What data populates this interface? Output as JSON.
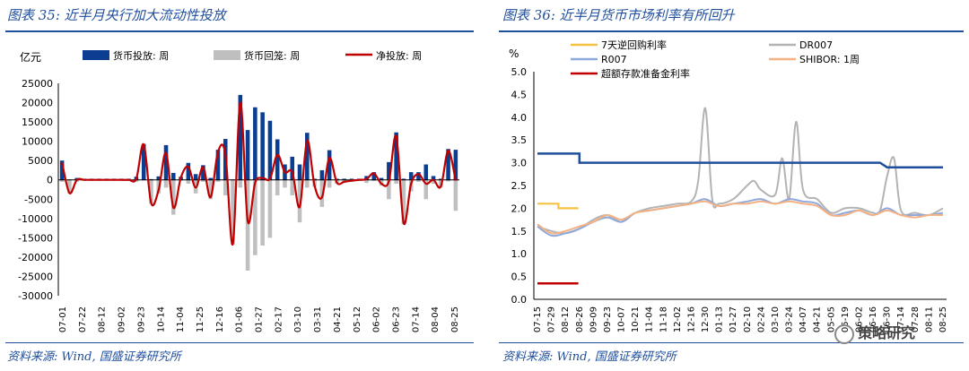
{
  "left": {
    "title": "图表 35:  近半月央行加大流动性投放",
    "source": "资料来源:  Wind,  国盛证券研究所"
  },
  "right": {
    "title": "图表 36:  近半月货币市场利率有所回升",
    "source": "资料来源:  Wind,  国盛证券研究所"
  },
  "watermark": "策略研究",
  "colors": {
    "title": "#1f4e9c",
    "injection": "#0b3d91",
    "withdrawal": "#bfbfbf",
    "net": "#c00000",
    "r7d": "#f5c242",
    "dr007": "#b3b3b3",
    "r007": "#8ea9db",
    "shibor": "#f4b183",
    "excess": "#c00000",
    "rrr": "#1f4e9c"
  },
  "chart_data": [
    {
      "type": "bar",
      "ylabel": "亿元",
      "ylim": [
        -30000,
        25000
      ],
      "yticks": [
        25000,
        20000,
        15000,
        10000,
        5000,
        0,
        -5000,
        -10000,
        -15000,
        -20000,
        -25000,
        -30000
      ],
      "xtick_labels": [
        "07-01",
        "07-22",
        "08-12",
        "09-02",
        "09-23",
        "10-14",
        "11-04",
        "11-25",
        "12-16",
        "01-06",
        "01-27",
        "02-17",
        "03-10",
        "03-31",
        "04-21",
        "05-12",
        "06-02",
        "06-23",
        "07-14",
        "08-04",
        "08-25"
      ],
      "legend": [
        "货币投放: 周",
        "货币回笼: 周",
        "净投放: 周"
      ],
      "series": [
        {
          "name": "货币投放: 周",
          "values": [
            5000,
            100,
            500,
            300,
            300,
            300,
            300,
            300,
            300,
            300,
            800,
            9300,
            200,
            900,
            9000,
            1800,
            800,
            4400,
            1500,
            3800,
            500,
            7800,
            10600,
            100,
            22000,
            12900,
            18800,
            17500,
            15300,
            10500,
            4000,
            6000,
            4000,
            12200,
            300,
            2500,
            7700,
            300,
            300,
            300,
            300,
            1000,
            2000,
            500,
            4600,
            12300,
            300,
            2000,
            2000,
            4000,
            1000,
            300,
            8000,
            7800
          ]
        },
        {
          "name": "货币回笼: 周",
          "values": [
            -500,
            -3500,
            -500,
            -300,
            -300,
            -300,
            -300,
            -300,
            -300,
            -300,
            -500,
            -100,
            -6200,
            -3500,
            -2000,
            -9000,
            -200,
            -1000,
            -3500,
            -500,
            -5000,
            -500,
            -4000,
            -16700,
            -2000,
            -23500,
            -19500,
            -17000,
            -15000,
            -4000,
            -2000,
            -4000,
            -11000,
            -2000,
            -1800,
            -7000,
            -2000,
            -1000,
            -800,
            -500,
            -300,
            -800,
            -300,
            -1500,
            -5000,
            -1000,
            -11500,
            -3000,
            -500,
            -5000,
            -1000,
            -2000,
            -400,
            -8000
          ]
        },
        {
          "name": "净投放: 周",
          "values": [
            4500,
            -3400,
            0,
            0,
            0,
            0,
            0,
            0,
            0,
            0,
            300,
            9200,
            -6000,
            -2600,
            7000,
            -7200,
            600,
            3400,
            -2000,
            3300,
            -4500,
            7300,
            6600,
            -16600,
            20000,
            -10600,
            -700,
            500,
            300,
            6500,
            2000,
            2000,
            -7000,
            10200,
            -1500,
            -4500,
            5700,
            -700,
            -500,
            -200,
            0,
            200,
            1700,
            -1000,
            -400,
            11300,
            -11200,
            -1000,
            1500,
            -1000,
            0,
            -1700,
            7600,
            -200
          ]
        }
      ]
    },
    {
      "type": "line",
      "ylabel": "%",
      "ylim": [
        0,
        5.0
      ],
      "yticks": [
        5.0,
        4.5,
        4.0,
        3.5,
        3.0,
        2.5,
        2.0,
        1.5,
        1.0,
        0.5,
        0.0
      ],
      "xtick_labels": [
        "07-15",
        "07-29",
        "08-12",
        "08-26",
        "09-09",
        "09-23",
        "10-07",
        "10-21",
        "11-04",
        "11-18",
        "12-02",
        "12-16",
        "12-30",
        "01-13",
        "01-27",
        "02-10",
        "02-24",
        "03-10",
        "03-24",
        "04-07",
        "04-21",
        "05-05",
        "05-19",
        "06-02",
        "06-16",
        "06-30",
        "07-14",
        "07-28",
        "08-11",
        "08-25"
      ],
      "legend": [
        "7天逆回购利率",
        "DR007",
        "R007",
        "SHIBOR: 1周",
        "超额存款准备金利率"
      ],
      "series": [
        {
          "name": "7天逆回购利率",
          "x": [
            "07-15",
            "08-05",
            "08-05",
            "08-25"
          ],
          "values": [
            2.1,
            2.1,
            2.0,
            2.0
          ]
        },
        {
          "name": "DR007",
          "x": [
            "07-15",
            "07-29",
            "08-12",
            "08-26",
            "09-09",
            "09-23",
            "10-07",
            "10-21",
            "11-04",
            "11-18",
            "12-02",
            "12-16",
            "12-23",
            "12-30",
            "01-06",
            "01-13",
            "01-27",
            "02-10",
            "02-17",
            "02-24",
            "03-10",
            "03-17",
            "03-24",
            "03-31",
            "04-07",
            "04-21",
            "05-05",
            "05-19",
            "06-02",
            "06-16",
            "06-23",
            "06-30",
            "07-07",
            "07-14",
            "07-28",
            "08-11",
            "08-25"
          ],
          "values": [
            1.6,
            1.5,
            1.45,
            1.55,
            1.75,
            1.85,
            1.7,
            1.9,
            2.0,
            2.05,
            2.1,
            2.15,
            2.6,
            4.2,
            2.2,
            2.1,
            2.2,
            2.5,
            2.6,
            2.4,
            2.3,
            3.1,
            2.2,
            3.9,
            2.4,
            2.2,
            1.9,
            2.0,
            2.0,
            1.9,
            1.95,
            2.7,
            3.1,
            1.95,
            1.9,
            1.85,
            2.0
          ]
        },
        {
          "name": "R007",
          "x": [
            "07-15",
            "07-29",
            "08-12",
            "08-26",
            "09-09",
            "09-23",
            "10-07",
            "10-21",
            "11-04",
            "11-18",
            "12-02",
            "12-16",
            "12-30",
            "01-13",
            "01-27",
            "02-10",
            "02-24",
            "03-10",
            "03-24",
            "04-07",
            "04-21",
            "05-05",
            "05-19",
            "06-02",
            "06-16",
            "06-30",
            "07-14",
            "07-28",
            "08-11",
            "08-25"
          ],
          "values": [
            1.6,
            1.4,
            1.45,
            1.55,
            1.7,
            1.8,
            1.7,
            1.9,
            1.95,
            2.0,
            2.05,
            2.1,
            2.2,
            2.05,
            2.1,
            2.15,
            2.2,
            2.1,
            2.2,
            2.15,
            2.1,
            1.85,
            1.9,
            1.95,
            1.85,
            2.0,
            1.85,
            1.85,
            1.85,
            1.9
          ]
        },
        {
          "name": "SHIBOR: 1周",
          "x": [
            "07-15",
            "07-29",
            "08-12",
            "08-26",
            "09-09",
            "09-23",
            "10-07",
            "10-21",
            "11-04",
            "11-18",
            "12-02",
            "12-16",
            "12-30",
            "01-13",
            "01-27",
            "02-10",
            "02-24",
            "03-10",
            "03-24",
            "04-07",
            "04-21",
            "05-05",
            "05-19",
            "06-02",
            "06-16",
            "06-30",
            "07-14",
            "07-28",
            "08-11",
            "08-25"
          ],
          "values": [
            1.65,
            1.45,
            1.5,
            1.6,
            1.7,
            1.85,
            1.75,
            1.9,
            1.95,
            2.0,
            2.05,
            2.1,
            2.15,
            2.05,
            2.1,
            2.1,
            2.15,
            2.1,
            2.15,
            2.1,
            2.05,
            1.85,
            1.85,
            1.95,
            1.85,
            1.95,
            1.85,
            1.8,
            1.85,
            1.85
          ]
        },
        {
          "name": "超额存款准备金利率",
          "x": [
            "07-15",
            "08-25"
          ],
          "values": [
            0.35,
            0.35
          ]
        },
        {
          "x": [
            "07-15",
            "08-26",
            "08-26",
            "06-23",
            "06-30",
            "08-25"
          ],
          "values": [
            3.2,
            3.2,
            3.0,
            3.0,
            2.9,
            2.9
          ]
        }
      ]
    }
  ]
}
